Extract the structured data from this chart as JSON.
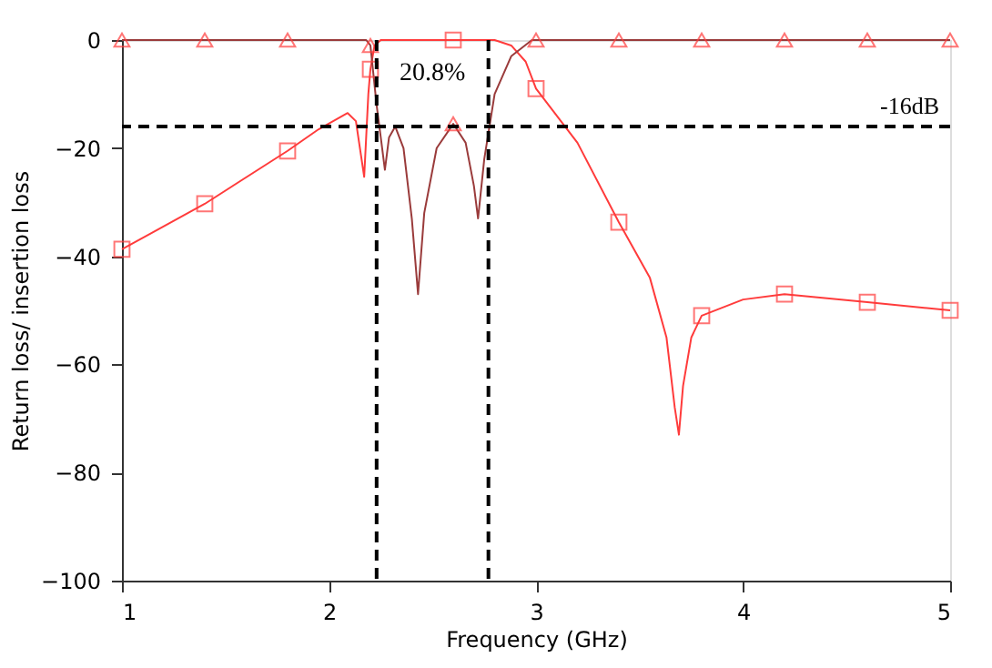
{
  "chart_data": {
    "type": "line",
    "xlabel": "Frequency (GHz)",
    "ylabel": "Return loss/ insertion loss",
    "xlim": [
      1,
      5
    ],
    "xticks": [
      1,
      2,
      3,
      4,
      5
    ],
    "ylim": [
      -100,
      0
    ],
    "yticks": [
      0,
      -20,
      -40,
      -60,
      -80,
      -100
    ],
    "grid": false,
    "series": [
      {
        "color": "#ff3b3b",
        "marker": "none",
        "x": [
          1.0,
          1.4,
          1.8,
          1.95,
          2.09,
          2.13,
          2.17,
          2.19,
          2.2,
          2.22,
          2.25,
          2.6,
          2.8,
          2.88,
          2.95,
          3.0,
          3.2,
          3.4,
          3.55,
          3.63,
          3.67,
          3.69,
          3.71,
          3.75,
          3.8,
          4.0,
          4.2,
          4.6,
          5.0
        ],
        "values": [
          -38.7,
          -30.3,
          -20.5,
          -16.5,
          -13.5,
          -15,
          -25.3,
          -10,
          -5.4,
          -1,
          0,
          0,
          0,
          -1,
          -4,
          -9,
          -19,
          -33.7,
          -44,
          -55,
          -68,
          -73,
          -64,
          -55,
          -51,
          -48,
          -47,
          -48.5,
          -50
        ]
      },
      {
        "color": "#9a3b3b",
        "marker": "none",
        "x": [
          1.0,
          2.18,
          2.2,
          2.23,
          2.25,
          2.27,
          2.29,
          2.32,
          2.36,
          2.4,
          2.43,
          2.46,
          2.52,
          2.6,
          2.66,
          2.7,
          2.72,
          2.75,
          2.8,
          2.88,
          2.98,
          5.0
        ],
        "values": [
          0,
          0,
          -1,
          -12,
          -18,
          -24,
          -18,
          -16,
          -20,
          -33,
          -47,
          -32,
          -20,
          -15.5,
          -19,
          -27,
          -33,
          -22,
          -10,
          -3,
          0,
          0
        ]
      },
      {
        "type": "scatter",
        "color": "#ff3b3b",
        "marker": "square",
        "x": [
          1.0,
          1.4,
          1.8,
          2.2,
          2.6,
          3.0,
          3.4,
          3.8,
          4.2,
          4.6,
          5.0
        ],
        "values": [
          -38.7,
          -30.3,
          -20.5,
          -5.4,
          0,
          -9,
          -33.7,
          -51,
          -47,
          -48.5,
          -50
        ]
      },
      {
        "type": "scatter",
        "color": "#ff3b3b",
        "marker": "triangle",
        "x": [
          1.0,
          1.4,
          1.8,
          2.2,
          2.6,
          3.0,
          3.4,
          3.8,
          4.2,
          4.6,
          5.0
        ],
        "values": [
          0,
          0,
          0,
          -1,
          -15.5,
          0,
          0,
          0,
          0,
          0,
          0
        ]
      }
    ],
    "ref_lines": [
      {
        "axis": "y",
        "value": -16,
        "label": "-16dB",
        "color": "#000000",
        "line_style": "dashed"
      },
      {
        "axis": "x",
        "value": 2.23,
        "label": null,
        "color": "#000000",
        "line_style": "dashed"
      },
      {
        "axis": "x",
        "value": 2.77,
        "label": null,
        "color": "#000000",
        "line_style": "dashed"
      }
    ],
    "annotations": [
      "20.8%"
    ]
  }
}
